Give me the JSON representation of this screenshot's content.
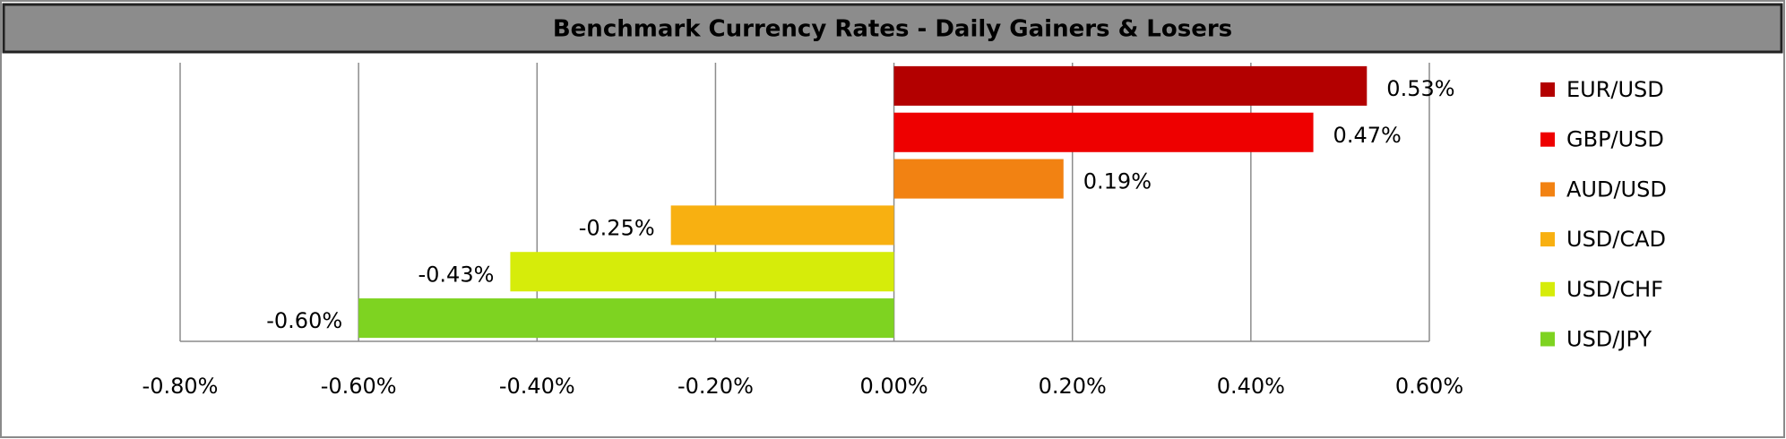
{
  "chart_data": {
    "type": "bar",
    "orientation": "horizontal",
    "title": "Benchmark Currency Rates - Daily Gainers & Losers",
    "categories": [
      "EUR/USD",
      "GBP/USD",
      "AUD/USD",
      "USD/CAD",
      "USD/CHF",
      "USD/JPY"
    ],
    "values": [
      0.53,
      0.47,
      0.19,
      -0.25,
      -0.43,
      -0.6
    ],
    "value_labels": [
      "0.53%",
      "0.47%",
      "0.19%",
      "-0.25%",
      "-0.43%",
      "-0.60%"
    ],
    "colors": [
      "#b30000",
      "#ee0000",
      "#f28212",
      "#f8b011",
      "#d6ec0a",
      "#7ed321"
    ],
    "xlim": [
      -0.8,
      0.6
    ],
    "xticks": [
      {
        "value": -0.8,
        "label": "-0.80%"
      },
      {
        "value": -0.6,
        "label": "-0.60%"
      },
      {
        "value": -0.4,
        "label": "-0.40%"
      },
      {
        "value": -0.2,
        "label": "-0.20%"
      },
      {
        "value": 0,
        "label": "0.00%"
      },
      {
        "value": 0.2,
        "label": "0.20%"
      },
      {
        "value": 0.4,
        "label": "0.40%"
      },
      {
        "value": 0.6,
        "label": "0.60%"
      }
    ],
    "grid": true,
    "legend": "right"
  }
}
